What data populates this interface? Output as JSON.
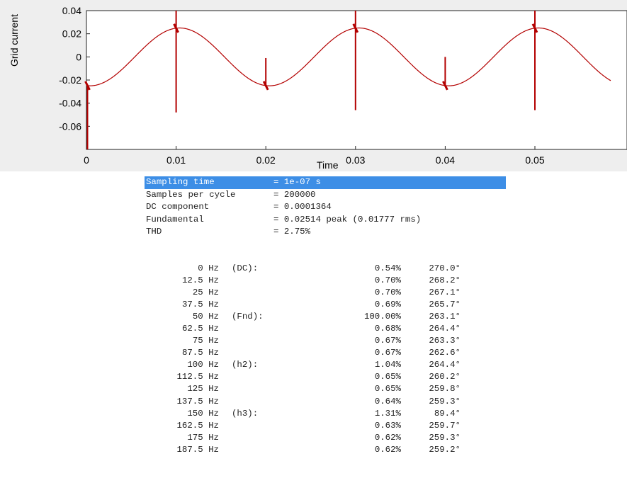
{
  "chart_data": {
    "type": "line",
    "title": "",
    "xlabel": "Time",
    "ylabel": "Grid current",
    "xlim": [
      0,
      0.0585
    ],
    "ylim": [
      -0.08,
      0.04
    ],
    "x_ticks": [
      0,
      0.01,
      0.02,
      0.03,
      0.04,
      0.05
    ],
    "x_tick_labels": [
      "0",
      "0.01",
      "0.02",
      "0.03",
      "0.04",
      "0.05"
    ],
    "y_ticks": [
      0.04,
      0.02,
      0,
      -0.02,
      -0.04,
      -0.06
    ],
    "y_tick_labels": [
      "0.04",
      "0.02",
      "0",
      "-0.02",
      "-0.04",
      "-0.06"
    ],
    "series": [
      {
        "color": "#b30000",
        "waveform": {
          "amplitude": 0.025,
          "frequency": 50,
          "phase_deg": 263
        },
        "spikes": [
          {
            "x": 0.0,
            "min": -0.08,
            "max": -0.025
          },
          {
            "x": 0.01,
            "min": -0.048,
            "max": 0.04
          },
          {
            "x": 0.02,
            "min": -0.025,
            "max": -0.001
          },
          {
            "x": 0.03,
            "min": -0.046,
            "max": 0.04
          },
          {
            "x": 0.04,
            "min": -0.025,
            "max": 0.0
          },
          {
            "x": 0.05,
            "min": -0.046,
            "max": 0.04
          }
        ]
      }
    ]
  },
  "report": {
    "summary": [
      {
        "label": "Sampling time",
        "value": "= 1e-07 s",
        "highlight": true
      },
      {
        "label": "Samples per cycle",
        "value": "= 200000",
        "highlight": false
      },
      {
        "label": "DC component",
        "value": "= 0.0001364",
        "highlight": false
      },
      {
        "label": "Fundamental",
        "value": "= 0.02514 peak (0.01777 rms)",
        "highlight": false
      },
      {
        "label": "THD",
        "value": "= 2.75%",
        "highlight": false
      }
    ],
    "harmonics": [
      {
        "freq": "0 Hz",
        "tag": "(DC):",
        "pct": "0.54%",
        "phase": "270.0°"
      },
      {
        "freq": "12.5 Hz",
        "tag": "",
        "pct": "0.70%",
        "phase": "268.2°"
      },
      {
        "freq": "25 Hz",
        "tag": "",
        "pct": "0.70%",
        "phase": "267.1°"
      },
      {
        "freq": "37.5 Hz",
        "tag": "",
        "pct": "0.69%",
        "phase": "265.7°"
      },
      {
        "freq": "50 Hz",
        "tag": "(Fnd):",
        "pct": "100.00%",
        "phase": "263.1°"
      },
      {
        "freq": "62.5 Hz",
        "tag": "",
        "pct": "0.68%",
        "phase": "264.4°"
      },
      {
        "freq": "75 Hz",
        "tag": "",
        "pct": "0.67%",
        "phase": "263.3°"
      },
      {
        "freq": "87.5 Hz",
        "tag": "",
        "pct": "0.67%",
        "phase": "262.6°"
      },
      {
        "freq": "100 Hz",
        "tag": "(h2):",
        "pct": "1.04%",
        "phase": "264.4°"
      },
      {
        "freq": "112.5 Hz",
        "tag": "",
        "pct": "0.65%",
        "phase": "260.2°"
      },
      {
        "freq": "125 Hz",
        "tag": "",
        "pct": "0.65%",
        "phase": "259.8°"
      },
      {
        "freq": "137.5 Hz",
        "tag": "",
        "pct": "0.64%",
        "phase": "259.3°"
      },
      {
        "freq": "150 Hz",
        "tag": "(h3):",
        "pct": "1.31%",
        "phase": "89.4°"
      },
      {
        "freq": "162.5 Hz",
        "tag": "",
        "pct": "0.63%",
        "phase": "259.7°"
      },
      {
        "freq": "175 Hz",
        "tag": "",
        "pct": "0.62%",
        "phase": "259.3°"
      },
      {
        "freq": "187.5 Hz",
        "tag": "",
        "pct": "0.62%",
        "phase": "259.2°"
      }
    ]
  }
}
